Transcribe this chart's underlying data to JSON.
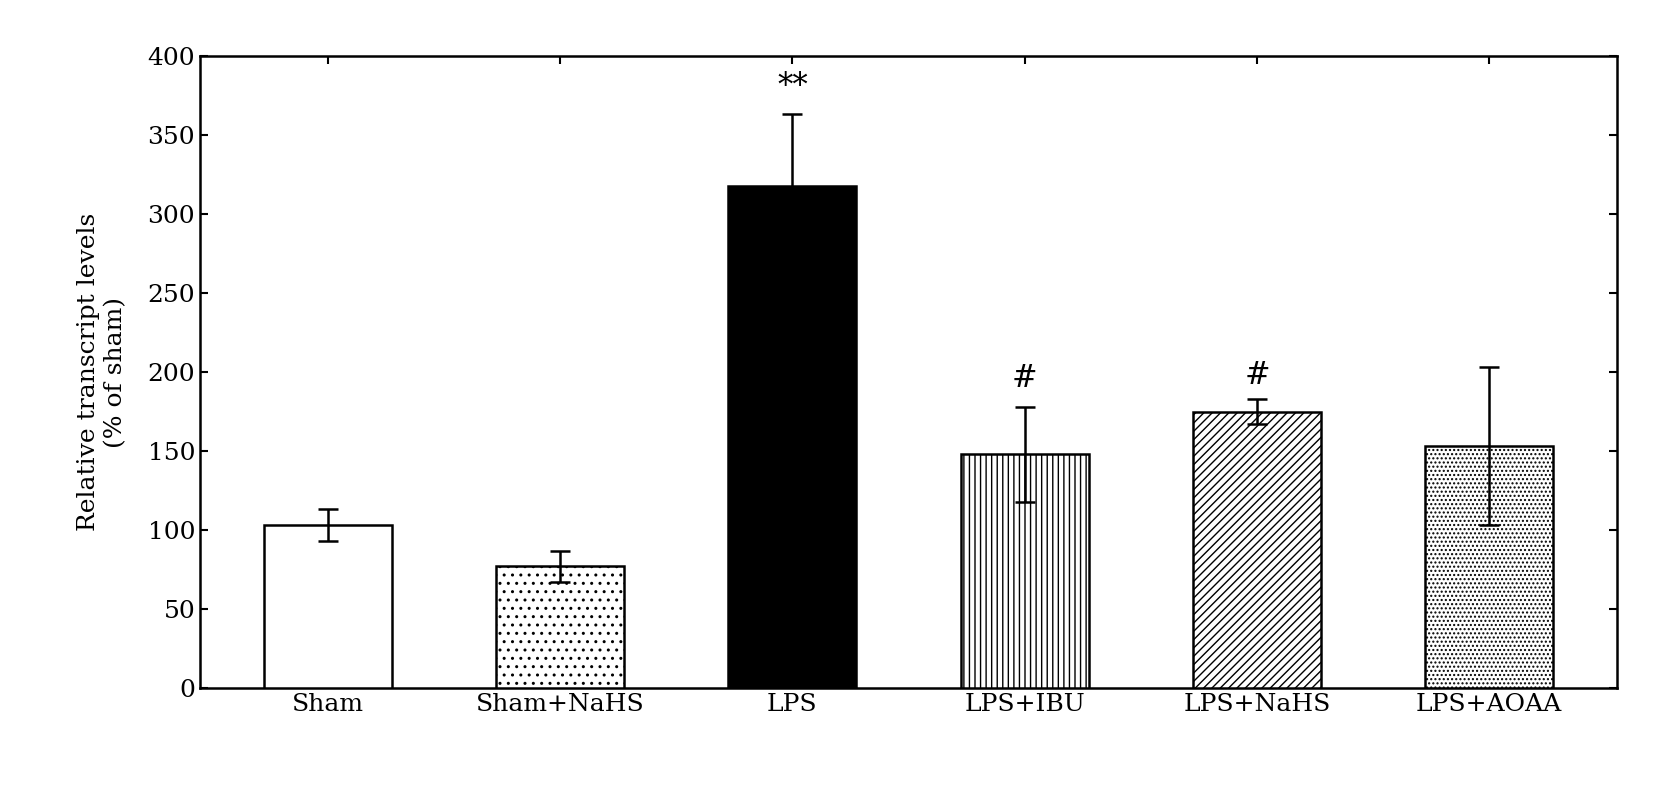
{
  "categories": [
    "Sham",
    "Sham+NaHS",
    "LPS",
    "LPS+IBU",
    "LPS+NaHS",
    "LPS+AOAA"
  ],
  "values": [
    103,
    77,
    318,
    148,
    175,
    153
  ],
  "errors": [
    10,
    10,
    45,
    30,
    8,
    50
  ],
  "ylabel_line1": "Relative transcript levels",
  "ylabel_line2": "(% of sham)",
  "ylim": [
    0,
    400
  ],
  "yticks": [
    0,
    50,
    100,
    150,
    200,
    250,
    300,
    350,
    400
  ],
  "significance": [
    "",
    "",
    "**",
    "#",
    "#",
    ""
  ],
  "sig_offsets": [
    0,
    0,
    8,
    8,
    5,
    0
  ],
  "background_color": "#ffffff",
  "bar_width": 0.55,
  "hatch_patterns": [
    "",
    "..",
    "",
    "|||",
    "////",
    "...."
  ],
  "face_colors": [
    "white",
    "white",
    "black",
    "white",
    "white",
    "white"
  ],
  "fontsize_ticks": 18,
  "fontsize_ylabel": 18,
  "fontsize_sig": 22
}
